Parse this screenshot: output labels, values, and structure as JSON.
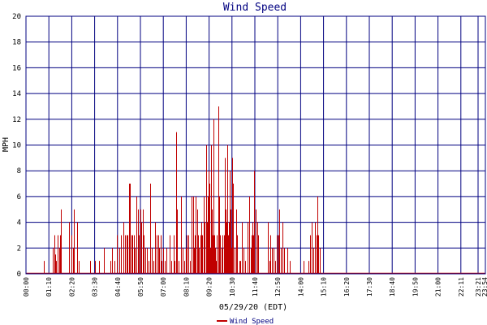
{
  "chart_data": {
    "type": "bar",
    "title": "Wind Speed",
    "xlabel": "05/29/20 (EDT)",
    "ylabel": "MPH",
    "ylim": [
      0,
      20
    ],
    "yticks": [
      0,
      2,
      4,
      6,
      8,
      10,
      12,
      14,
      16,
      18,
      20
    ],
    "grid": true,
    "legend_position": "bottom-center",
    "colors": {
      "series": "#c00000",
      "grid": "#000080",
      "title": "#000080"
    },
    "x_tick_labels": [
      "00:00",
      "01:10",
      "02:20",
      "03:30",
      "04:40",
      "05:50",
      "07:00",
      "08:10",
      "09:20",
      "10:30",
      "11:40",
      "12:50",
      "14:00",
      "15:10",
      "16:20",
      "17:30",
      "18:40",
      "19:50",
      "21:00",
      "22:11",
      "23:21",
      "23:54"
    ],
    "series": [
      {
        "name": "Wind Speed",
        "x_unit": "minutes since 00:00",
        "points": [
          [
            55,
            1
          ],
          [
            85,
            2
          ],
          [
            88,
            3
          ],
          [
            92,
            1.5
          ],
          [
            95,
            1
          ],
          [
            100,
            3
          ],
          [
            104,
            2
          ],
          [
            108,
            3
          ],
          [
            110,
            5
          ],
          [
            135,
            4
          ],
          [
            142,
            3
          ],
          [
            148,
            2
          ],
          [
            150,
            5
          ],
          [
            160,
            4
          ],
          [
            165,
            1
          ],
          [
            200,
            1
          ],
          [
            215,
            1
          ],
          [
            230,
            1
          ],
          [
            245,
            2
          ],
          [
            265,
            1
          ],
          [
            270,
            2
          ],
          [
            278,
            1
          ],
          [
            285,
            3
          ],
          [
            292,
            2
          ],
          [
            298,
            3
          ],
          [
            305,
            4
          ],
          [
            310,
            3
          ],
          [
            315,
            3
          ],
          [
            318,
            3
          ],
          [
            322,
            7
          ],
          [
            326,
            7
          ],
          [
            330,
            3
          ],
          [
            334,
            3
          ],
          [
            338,
            3
          ],
          [
            342,
            2
          ],
          [
            346,
            6
          ],
          [
            350,
            5
          ],
          [
            354,
            3
          ],
          [
            358,
            5
          ],
          [
            362,
            4
          ],
          [
            366,
            5
          ],
          [
            370,
            3
          ],
          [
            374,
            2
          ],
          [
            378,
            2
          ],
          [
            385,
            1
          ],
          [
            390,
            7
          ],
          [
            395,
            2
          ],
          [
            400,
            1
          ],
          [
            405,
            4
          ],
          [
            410,
            3
          ],
          [
            414,
            3
          ],
          [
            418,
            2
          ],
          [
            422,
            3
          ],
          [
            426,
            1
          ],
          [
            430,
            2
          ],
          [
            435,
            1
          ],
          [
            440,
            2
          ],
          [
            450,
            3
          ],
          [
            455,
            1
          ],
          [
            462,
            3
          ],
          [
            465,
            1
          ],
          [
            470,
            11
          ],
          [
            474,
            5
          ],
          [
            478,
            1
          ],
          [
            485,
            6
          ],
          [
            490,
            2
          ],
          [
            495,
            1
          ],
          [
            500,
            2
          ],
          [
            505,
            3
          ],
          [
            510,
            3
          ],
          [
            515,
            1
          ],
          [
            518,
            5
          ],
          [
            520,
            6
          ],
          [
            523,
            6
          ],
          [
            526,
            2
          ],
          [
            530,
            3
          ],
          [
            533,
            6
          ],
          [
            536,
            5
          ],
          [
            540,
            3
          ],
          [
            543,
            2
          ],
          [
            546,
            3
          ],
          [
            549,
            4
          ],
          [
            552,
            3
          ],
          [
            556,
            6
          ],
          [
            560,
            4
          ],
          [
            565,
            3
          ],
          [
            565,
            10
          ],
          [
            568,
            4
          ],
          [
            570,
            6
          ],
          [
            572,
            8
          ],
          [
            574,
            7
          ],
          [
            576,
            5
          ],
          [
            578,
            2
          ],
          [
            580,
            10
          ],
          [
            583,
            5
          ],
          [
            586,
            3
          ],
          [
            588,
            12
          ],
          [
            590,
            3
          ],
          [
            593,
            2
          ],
          [
            596,
            1
          ],
          [
            599,
            3
          ],
          [
            602,
            2
          ],
          [
            604,
            13
          ],
          [
            606,
            6
          ],
          [
            608,
            3
          ],
          [
            612,
            2
          ],
          [
            615,
            3
          ],
          [
            620,
            3
          ],
          [
            624,
            9
          ],
          [
            626,
            5
          ],
          [
            628,
            4
          ],
          [
            630,
            10
          ],
          [
            633,
            3
          ],
          [
            636,
            4
          ],
          [
            638,
            8
          ],
          [
            640,
            5
          ],
          [
            643,
            2
          ],
          [
            646,
            9
          ],
          [
            648,
            7
          ],
          [
            650,
            4
          ],
          [
            654,
            2
          ],
          [
            658,
            5
          ],
          [
            662,
            3
          ],
          [
            668,
            1
          ],
          [
            672,
            1
          ],
          [
            676,
            4
          ],
          [
            682,
            2
          ],
          [
            688,
            1
          ],
          [
            695,
            4
          ],
          [
            700,
            6
          ],
          [
            704,
            2
          ],
          [
            708,
            3
          ],
          [
            710,
            4
          ],
          [
            713,
            3
          ],
          [
            716,
            8
          ],
          [
            720,
            5
          ],
          [
            724,
            4
          ],
          [
            728,
            3
          ],
          [
            758,
            4
          ],
          [
            762,
            1
          ],
          [
            766,
            3
          ],
          [
            770,
            2
          ],
          [
            775,
            2
          ],
          [
            780,
            1
          ],
          [
            785,
            3
          ],
          [
            790,
            3
          ],
          [
            795,
            5
          ],
          [
            800,
            2
          ],
          [
            805,
            4
          ],
          [
            808,
            2
          ],
          [
            818,
            2
          ],
          [
            826,
            1
          ],
          [
            870,
            1
          ],
          [
            886,
            1
          ],
          [
            890,
            3
          ],
          [
            895,
            4
          ],
          [
            900,
            2
          ],
          [
            905,
            4
          ],
          [
            910,
            3
          ],
          [
            914,
            6
          ],
          [
            917,
            3
          ],
          [
            920,
            2
          ]
        ]
      }
    ],
    "xlim_minutes": [
      0,
      1440
    ]
  }
}
